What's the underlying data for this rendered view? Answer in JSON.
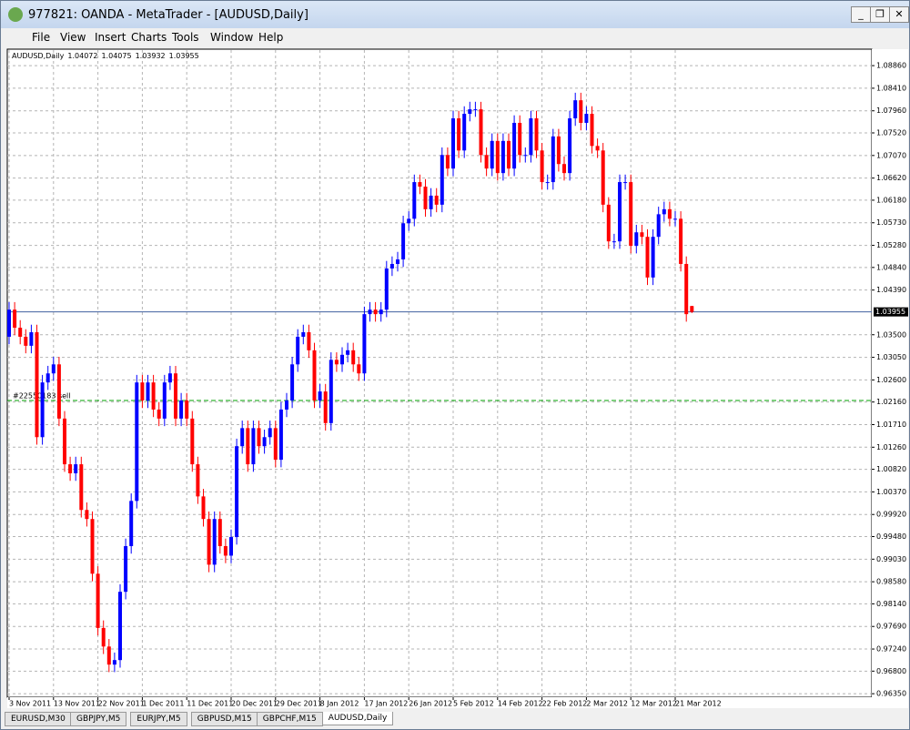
{
  "window": {
    "title": "977821: OANDA - MetaTrader - [AUDUSD,Daily]",
    "menu": [
      "File",
      "View",
      "Insert",
      "Charts",
      "Tools",
      "Window",
      "Help"
    ]
  },
  "tabs": [
    "EURUSD,M30",
    "GBPJPY,M5",
    "EURJPY,M5",
    "GBPUSD,M15",
    "GBPCHF,M15",
    "AUDUSD,Daily"
  ],
  "chart_data": {
    "type": "candlestick",
    "symbol_label": "AUDUSD,Daily",
    "up_color": "#0000ff",
    "down_color": "#ff0000",
    "grid": true,
    "categories": [
      "3 Nov 2011",
      null,
      null,
      null,
      null,
      null,
      null,
      null,
      "13 Nov 2011",
      null,
      null,
      null,
      null,
      null,
      null,
      null,
      "22 Nov 2011",
      null,
      null,
      null,
      null,
      null,
      null,
      null,
      "1 Dec 2011",
      null,
      null,
      null,
      null,
      null,
      null,
      null,
      "11 Dec 2011",
      null,
      null,
      null,
      null,
      null,
      null,
      null,
      "20 Dec 2011",
      null,
      null,
      null,
      null,
      null,
      null,
      null,
      "29 Dec 2011",
      null,
      null,
      null,
      null,
      null,
      null,
      null,
      "8 Jan 2012",
      null,
      null,
      null,
      null,
      null,
      null,
      null,
      "17 Jan 2012",
      null,
      null,
      null,
      null,
      null,
      null,
      null,
      "26 Jan 2012",
      null,
      null,
      null,
      null,
      null,
      null,
      null,
      "5 Feb 2012",
      null,
      null,
      null,
      null,
      null,
      null,
      null,
      "14 Feb 2012",
      null,
      null,
      null,
      null,
      null,
      null,
      null,
      "22 Feb 2012",
      null,
      null,
      null,
      null,
      null,
      null,
      null,
      "2 Mar 2012",
      null,
      null,
      null,
      null,
      null,
      null,
      null,
      "12 Mar 2012",
      null,
      null,
      null,
      null,
      null,
      null,
      null,
      "21 Mar 2012",
      null,
      null,
      null
    ],
    "open": [
      1.0346,
      1.04,
      1.0364,
      1.0346,
      1.0328,
      1.0355,
      1.0146,
      1.0255,
      1.0273,
      1.0291,
      1.0183,
      1.0092,
      1.0074,
      1.0092,
      1.0001,
      0.9983,
      0.9874,
      0.9766,
      0.9729,
      0.9693,
      0.9702,
      0.9838,
      0.9929,
      1.0019,
      1.0255,
      1.0219,
      1.0255,
      1.0201,
      1.0183,
      1.0255,
      1.0273,
      1.0183,
      1.0219,
      1.0183,
      1.0092,
      1.0028,
      0.9983,
      0.9892,
      0.9983,
      0.9929,
      0.991,
      0.9947,
      1.0128,
      1.0164,
      1.0092,
      1.0164,
      1.0128,
      1.0146,
      1.0164,
      1.0101,
      1.0201,
      1.0219,
      1.0291,
      1.0346,
      1.0355,
      1.0319,
      1.0219,
      1.0237,
      1.0174,
      1.03,
      1.0291,
      1.031,
      1.0319,
      1.0291,
      1.0273,
      1.0391,
      1.04,
      1.0391,
      1.04,
      1.0482,
      1.0491,
      1.05,
      1.0572,
      1.0581,
      1.0654,
      1.0645,
      1.06,
      1.0627,
      1.0609,
      1.0708,
      1.0681,
      1.0781,
      1.0717,
      1.079,
      1.0799,
      1.0799,
      1.0708,
      1.0681,
      1.0736,
      1.0672,
      1.0736,
      1.0681,
      1.0772,
      1.0708,
      1.0708,
      1.0781,
      1.0717,
      1.0654,
      1.0654,
      1.0745,
      1.069,
      1.0672,
      1.0781,
      1.0817,
      1.0772,
      1.079,
      1.0726,
      1.0717,
      1.0609,
      1.0536,
      1.0536,
      1.0654,
      1.0654,
      1.0527,
      1.0554,
      1.0545,
      1.0464,
      1.0545,
      1.059,
      1.06,
      1.0581,
      1.0581,
      1.0491,
      1.04072
    ],
    "high": [
      1.0415,
      1.0415,
      1.0379,
      1.0361,
      1.037,
      1.037,
      1.027,
      1.0288,
      1.0306,
      1.0306,
      1.0198,
      1.0107,
      1.0107,
      1.0107,
      1.0016,
      0.9998,
      0.9889,
      0.9781,
      0.9744,
      0.9717,
      0.9853,
      0.9944,
      1.0034,
      1.027,
      1.027,
      1.027,
      1.027,
      1.0216,
      1.027,
      1.0288,
      1.0288,
      1.0234,
      1.0234,
      1.0198,
      1.0107,
      1.0043,
      0.9998,
      0.9998,
      0.9998,
      0.9944,
      0.9962,
      1.0143,
      1.0179,
      1.0179,
      1.0179,
      1.0179,
      1.0161,
      1.0179,
      1.0179,
      1.0216,
      1.0234,
      1.0306,
      1.0361,
      1.037,
      1.037,
      1.0334,
      1.0252,
      1.0252,
      1.0315,
      1.0315,
      1.0325,
      1.0334,
      1.0334,
      1.0306,
      1.0406,
      1.0415,
      1.0415,
      1.0415,
      1.0497,
      1.0506,
      1.0515,
      1.0587,
      1.0596,
      1.0669,
      1.0669,
      1.066,
      1.0642,
      1.0642,
      1.0723,
      1.0723,
      1.0796,
      1.0796,
      1.0805,
      1.0814,
      1.0814,
      1.0814,
      1.0723,
      1.0751,
      1.0751,
      1.0751,
      1.0751,
      1.0787,
      1.0787,
      1.0723,
      1.0796,
      1.0796,
      1.0732,
      1.0669,
      1.076,
      1.076,
      1.0705,
      1.0796,
      1.0832,
      1.0832,
      1.0805,
      1.0805,
      1.0741,
      1.0732,
      1.0624,
      1.0551,
      1.0669,
      1.0669,
      1.0669,
      1.0569,
      1.0569,
      1.056,
      1.056,
      1.0605,
      1.0615,
      1.0615,
      1.0596,
      1.0596,
      1.0506,
      1.04075
    ],
    "low": [
      1.0331,
      1.0349,
      1.0331,
      1.0313,
      1.0313,
      1.0131,
      1.0131,
      1.024,
      1.0258,
      1.0168,
      1.0077,
      1.0059,
      1.0059,
      0.9986,
      0.9968,
      0.9859,
      0.9751,
      0.9714,
      0.9678,
      0.9678,
      0.9687,
      0.9823,
      0.9914,
      1.0004,
      1.0204,
      1.0204,
      1.0186,
      1.0168,
      1.0168,
      1.024,
      1.0168,
      1.0168,
      1.0168,
      1.0077,
      1.0013,
      0.9968,
      0.9877,
      0.9877,
      0.9914,
      0.9895,
      0.9895,
      0.9932,
      1.0113,
      1.0077,
      1.0077,
      1.0113,
      1.0113,
      1.0131,
      1.0086,
      1.0086,
      1.0186,
      1.0204,
      1.0276,
      1.0331,
      1.0304,
      1.0204,
      1.0204,
      1.0159,
      1.0159,
      1.0276,
      1.0276,
      1.0295,
      1.0276,
      1.0258,
      1.0258,
      1.0376,
      1.0376,
      1.0376,
      1.0385,
      1.0467,
      1.0476,
      1.0485,
      1.0557,
      1.0566,
      1.063,
      1.0585,
      1.0585,
      1.0594,
      1.0594,
      1.0666,
      1.0666,
      1.0702,
      1.0702,
      1.0775,
      1.0784,
      1.0693,
      1.0666,
      1.0666,
      1.0657,
      1.0657,
      1.0666,
      1.0666,
      1.0693,
      1.0693,
      1.0693,
      1.0702,
      1.0639,
      1.0639,
      1.0639,
      1.0675,
      1.0657,
      1.0657,
      1.0766,
      1.0757,
      1.0757,
      1.0711,
      1.0702,
      1.0594,
      1.0521,
      1.0521,
      1.0521,
      1.0639,
      1.0512,
      1.0512,
      1.053,
      1.0449,
      1.0449,
      1.053,
      1.0575,
      1.0566,
      1.0566,
      1.0476,
      1.0376,
      1.03932
    ],
    "close": [
      1.04,
      1.0364,
      1.0346,
      1.0328,
      1.0355,
      1.0146,
      1.0255,
      1.0273,
      1.0291,
      1.0183,
      1.0092,
      1.0074,
      1.0092,
      1.0001,
      0.9983,
      0.9874,
      0.9766,
      0.9729,
      0.9693,
      0.9702,
      0.9838,
      0.9929,
      1.0019,
      1.0255,
      1.0219,
      1.0255,
      1.0201,
      1.0183,
      1.0255,
      1.0273,
      1.0183,
      1.0219,
      1.0183,
      1.0092,
      1.0028,
      0.9983,
      0.9892,
      0.9983,
      0.9929,
      0.991,
      0.9947,
      1.0128,
      1.0164,
      1.0092,
      1.0164,
      1.0128,
      1.0146,
      1.0164,
      1.0101,
      1.0201,
      1.0219,
      1.0291,
      1.0346,
      1.0355,
      1.0319,
      1.0219,
      1.0237,
      1.0174,
      1.03,
      1.0291,
      1.031,
      1.0319,
      1.0291,
      1.0273,
      1.0391,
      1.04,
      1.0391,
      1.04,
      1.0482,
      1.0491,
      1.05,
      1.0572,
      1.0581,
      1.0654,
      1.0645,
      1.06,
      1.0627,
      1.0609,
      1.0708,
      1.0681,
      1.0781,
      1.0717,
      1.079,
      1.0799,
      1.0799,
      1.0708,
      1.0681,
      1.0736,
      1.0672,
      1.0736,
      1.0681,
      1.0772,
      1.0708,
      1.0708,
      1.0781,
      1.0717,
      1.0654,
      1.0654,
      1.0745,
      1.069,
      1.0672,
      1.0781,
      1.0817,
      1.0772,
      1.079,
      1.0726,
      1.0717,
      1.0609,
      1.0536,
      1.0536,
      1.0654,
      1.0654,
      1.0527,
      1.0554,
      1.0545,
      1.0464,
      1.0545,
      1.059,
      1.06,
      1.0581,
      1.0581,
      1.0491,
      1.0391,
      1.03955
    ],
    "ylim": [
      0.9628,
      1.0917
    ],
    "yticks": [
      {
        "value": 1.0886,
        "label": "1.08860"
      },
      {
        "value": 1.0841,
        "label": "1.08410"
      },
      {
        "value": 1.0796,
        "label": "1.07960"
      },
      {
        "value": 1.0752,
        "label": "1.07520"
      },
      {
        "value": 1.0707,
        "label": "1.07070"
      },
      {
        "value": 1.0662,
        "label": "1.06620"
      },
      {
        "value": 1.0618,
        "label": "1.06180"
      },
      {
        "value": 1.0573,
        "label": "1.05730"
      },
      {
        "value": 1.0528,
        "label": "1.05280"
      },
      {
        "value": 1.0484,
        "label": "1.04840"
      },
      {
        "value": 1.0439,
        "label": "1.04390"
      },
      {
        "value": 1.035,
        "label": "1.03500"
      },
      {
        "value": 1.0305,
        "label": "1.03050"
      },
      {
        "value": 1.026,
        "label": "1.02600"
      },
      {
        "value": 1.0216,
        "label": "1.02160"
      },
      {
        "value": 1.0171,
        "label": "1.01710"
      },
      {
        "value": 1.0126,
        "label": "1.01260"
      },
      {
        "value": 1.0082,
        "label": "1.00820"
      },
      {
        "value": 1.0037,
        "label": "1.00370"
      },
      {
        "value": 0.9992,
        "label": "0.99920"
      },
      {
        "value": 0.9948,
        "label": "0.99480"
      },
      {
        "value": 0.9903,
        "label": "0.99030"
      },
      {
        "value": 0.9858,
        "label": "0.98580"
      },
      {
        "value": 0.9814,
        "label": "0.98140"
      },
      {
        "value": 0.9769,
        "label": "0.97690"
      },
      {
        "value": 0.9724,
        "label": "0.97240"
      },
      {
        "value": 0.968,
        "label": "0.96800"
      },
      {
        "value": 0.9635,
        "label": "0.96350"
      }
    ],
    "current_price": {
      "value": 1.03955,
      "label": "1.03955"
    },
    "order_line": {
      "value": 1.0219,
      "label": "#22550183 sell"
    }
  }
}
